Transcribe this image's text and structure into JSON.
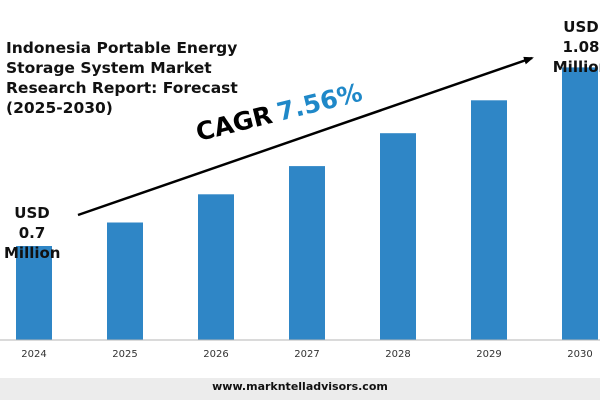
{
  "header": {
    "title": "Indonesia Portable Energy Storage System Market Research Report: Forecast (2025-2030)"
  },
  "annotations": {
    "start_value": [
      "USD",
      "0.7",
      "Million"
    ],
    "end_value": [
      "USD",
      "1.08",
      "Million"
    ],
    "cagr_label": "CAGR",
    "cagr_value": "7.56%"
  },
  "footer": {
    "url": "www.markntelladvisors.com"
  },
  "colors": {
    "bar": "#2f86c6",
    "accent": "#1f88c8",
    "axis": "#b5b5b5",
    "arrow": "#000000",
    "footer_band": "#ececec"
  },
  "chart_data": {
    "type": "bar",
    "title": "Indonesia Portable Energy Storage System Market Research Report: Forecast (2025-2030)",
    "xlabel": "",
    "ylabel": "",
    "categories": [
      "2024",
      "2025",
      "2026",
      "2027",
      "2028",
      "2029",
      "2030"
    ],
    "series": [
      {
        "values": [
          0.7,
          0.75,
          0.81,
          0.87,
          0.94,
          1.01,
          1.08
        ]
      }
    ],
    "unit": "USD Million",
    "ylim": [
      0.5,
      1.1
    ],
    "grid": false,
    "legend": "none",
    "bar_color": "#2f86c6"
  }
}
